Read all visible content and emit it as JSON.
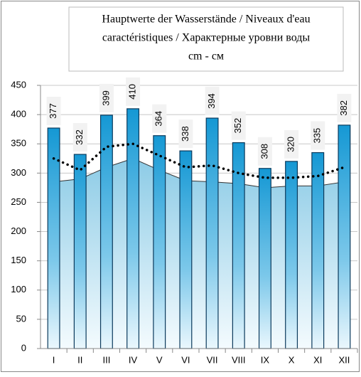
{
  "chart_data": {
    "type": "bar",
    "title": [
      "Hauptwerte der Wasserstände / Niveaux d'eau",
      "caractéristiques / Характерные уровни воды",
      "cm - см"
    ],
    "categories": [
      "I",
      "II",
      "III",
      "IV",
      "V",
      "VI",
      "VII",
      "VIII",
      "IX",
      "X",
      "XI",
      "XII"
    ],
    "series": [
      {
        "type": "bar",
        "color": "#1f9fd8",
        "values": [
          377,
          332,
          399,
          410,
          364,
          338,
          394,
          352,
          308,
          320,
          335,
          382
        ]
      },
      {
        "type": "area",
        "color": "#9fd3ea",
        "values": [
          285,
          290,
          310,
          325,
          305,
          287,
          285,
          282,
          275,
          278,
          278,
          285
        ]
      },
      {
        "type": "line",
        "style": "dotted",
        "color": "#000000",
        "values": [
          325,
          305,
          345,
          350,
          330,
          310,
          313,
          300,
          292,
          292,
          295,
          310
        ]
      }
    ],
    "ylim": [
      0,
      450
    ],
    "yticks": [
      0,
      50,
      100,
      150,
      200,
      250,
      300,
      350,
      400,
      450
    ],
    "grid": true
  }
}
